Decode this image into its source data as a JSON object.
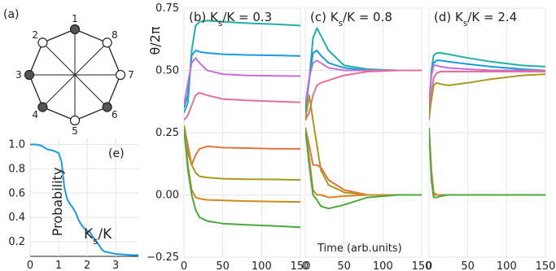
{
  "chart_data": [
    {
      "panel": "a",
      "type": "diagram",
      "label": "(a)",
      "nodes": [
        {
          "id": "1",
          "filled": true
        },
        {
          "id": "8",
          "filled": false
        },
        {
          "id": "7",
          "filled": false
        },
        {
          "id": "6",
          "filled": true
        },
        {
          "id": "5",
          "filled": false
        },
        {
          "id": "4",
          "filled": true
        },
        {
          "id": "3",
          "filled": true
        },
        {
          "id": "2",
          "filled": false
        }
      ]
    },
    {
      "panel": "e",
      "type": "line",
      "label": "(e)",
      "ylabel": "Probability",
      "xlabel": "K_s/K",
      "xlim": [
        0,
        3.8
      ],
      "ylim": [
        0.08,
        1.05
      ],
      "xticks": [
        "0",
        "1",
        "2",
        "3"
      ],
      "yticks": [
        "0.2",
        "0.4",
        "0.6",
        "0.8",
        "1.0"
      ],
      "color": "#1a9be0",
      "x": [
        0,
        0.2,
        0.4,
        0.6,
        0.8,
        1.0,
        1.1,
        1.2,
        1.3,
        1.4,
        1.5,
        1.6,
        1.7,
        1.8,
        1.9,
        2.0,
        2.1,
        2.2,
        2.3,
        2.4,
        2.5,
        2.6,
        2.8,
        3.0,
        3.3,
        3.6,
        3.8
      ],
      "y": [
        1.0,
        1.0,
        0.99,
        0.96,
        0.95,
        0.93,
        0.86,
        0.65,
        0.55,
        0.51,
        0.48,
        0.44,
        0.38,
        0.34,
        0.31,
        0.29,
        0.28,
        0.24,
        0.21,
        0.18,
        0.14,
        0.12,
        0.11,
        0.1,
        0.095,
        0.09,
        0.09
      ]
    },
    {
      "panel": "b",
      "type": "line",
      "title": "(b) K_s/K = 0.3",
      "ylabel": "θ/2π",
      "xlim": [
        0,
        150
      ],
      "ylim": [
        -0.25,
        0.75
      ],
      "xticks": [
        "0",
        "50",
        "100",
        "150"
      ],
      "yticks": [
        "−0.25",
        "0.00",
        "0.25",
        "0.50",
        "0.75"
      ],
      "series": [
        {
          "color": "#1fb0a6",
          "x": [
            0,
            5,
            10,
            15,
            20,
            30,
            50,
            80,
            120,
            150
          ],
          "y": [
            0.33,
            0.37,
            0.58,
            0.68,
            0.695,
            0.7,
            0.695,
            0.69,
            0.685,
            0.68
          ]
        },
        {
          "color": "#1a9be0",
          "x": [
            0,
            5,
            10,
            15,
            20,
            30,
            50,
            80,
            120,
            150
          ],
          "y": [
            0.35,
            0.4,
            0.56,
            0.58,
            0.575,
            0.57,
            0.565,
            0.562,
            0.56,
            0.558
          ]
        },
        {
          "color": "#c86dd6",
          "x": [
            0,
            5,
            10,
            15,
            20,
            30,
            50,
            80,
            120,
            150
          ],
          "y": [
            0.36,
            0.45,
            0.53,
            0.55,
            0.53,
            0.5,
            0.485,
            0.48,
            0.478,
            0.477
          ]
        },
        {
          "color": "#e46f9c",
          "x": [
            0,
            5,
            10,
            15,
            20,
            30,
            50,
            80,
            120,
            150
          ],
          "y": [
            0.3,
            0.32,
            0.36,
            0.4,
            0.41,
            0.4,
            0.385,
            0.38,
            0.375,
            0.372
          ]
        },
        {
          "color": "#e3743a",
          "x": [
            0,
            5,
            10,
            15,
            20,
            30,
            50,
            80,
            120,
            150
          ],
          "y": [
            0.28,
            0.2,
            0.12,
            0.16,
            0.185,
            0.195,
            0.19,
            0.188,
            0.185,
            0.185
          ]
        },
        {
          "color": "#a79a1c",
          "x": [
            0,
            5,
            10,
            15,
            20,
            30,
            50,
            80,
            120,
            150
          ],
          "y": [
            0.27,
            0.17,
            0.12,
            0.09,
            0.075,
            0.07,
            0.065,
            0.063,
            0.062,
            0.06
          ]
        },
        {
          "color": "#cd8b1e",
          "x": [
            0,
            5,
            10,
            15,
            20,
            30,
            50,
            80,
            120,
            150
          ],
          "y": [
            0.28,
            0.12,
            0.02,
            -0.01,
            -0.015,
            -0.02,
            -0.022,
            -0.025,
            -0.027,
            -0.028
          ]
        },
        {
          "color": "#4da83f",
          "x": [
            0,
            5,
            10,
            15,
            20,
            30,
            50,
            80,
            120,
            150
          ],
          "y": [
            0.27,
            0.1,
            0.0,
            -0.06,
            -0.09,
            -0.105,
            -0.115,
            -0.12,
            -0.125,
            -0.13
          ]
        }
      ]
    },
    {
      "panel": "c",
      "type": "line",
      "title": "(c) K_s/K = 0.8",
      "xlabel": "Time (arb.units)",
      "xlim": [
        0,
        150
      ],
      "ylim": [
        -0.25,
        0.75
      ],
      "xticks": [
        "0",
        "50",
        "100",
        "150"
      ],
      "series": [
        {
          "color": "#1fb0a6",
          "x": [
            0,
            5,
            10,
            15,
            20,
            30,
            50,
            80,
            120,
            150
          ],
          "y": [
            0.33,
            0.46,
            0.63,
            0.67,
            0.64,
            0.58,
            0.52,
            0.505,
            0.5,
            0.5
          ]
        },
        {
          "color": "#1a9be0",
          "x": [
            0,
            5,
            10,
            15,
            20,
            30,
            50,
            80,
            120,
            150
          ],
          "y": [
            0.34,
            0.46,
            0.57,
            0.58,
            0.56,
            0.53,
            0.51,
            0.5,
            0.5,
            0.5
          ]
        },
        {
          "color": "#c86dd6",
          "x": [
            0,
            5,
            10,
            15,
            20,
            30,
            50,
            80,
            120,
            150
          ],
          "y": [
            0.36,
            0.47,
            0.53,
            0.54,
            0.53,
            0.51,
            0.5,
            0.5,
            0.5,
            0.5
          ]
        },
        {
          "color": "#e46f9c",
          "x": [
            0,
            5,
            10,
            15,
            20,
            30,
            50,
            80,
            120,
            150
          ],
          "y": [
            0.3,
            0.33,
            0.4,
            0.44,
            0.45,
            0.46,
            0.48,
            0.495,
            0.5,
            0.5
          ]
        },
        {
          "color": "#a79a1c",
          "x": [
            0,
            5,
            10,
            15,
            20,
            30,
            50,
            80,
            120,
            150
          ],
          "y": [
            0.3,
            0.4,
            0.3,
            0.2,
            0.1,
            0.04,
            0.01,
            0.0,
            0.0,
            0.0
          ]
        },
        {
          "color": "#e3743a",
          "x": [
            0,
            5,
            10,
            15,
            20,
            30,
            50,
            80,
            120,
            150
          ],
          "y": [
            0.27,
            0.2,
            0.12,
            0.12,
            0.11,
            0.06,
            0.02,
            0.0,
            0.0,
            0.0
          ]
        },
        {
          "color": "#cd8b1e",
          "x": [
            0,
            5,
            10,
            15,
            20,
            30,
            50,
            80,
            120,
            150
          ],
          "y": [
            0.27,
            0.15,
            0.02,
            0.0,
            0.0,
            -0.01,
            -0.005,
            0.0,
            0.0,
            0.0
          ]
        },
        {
          "color": "#4da83f",
          "x": [
            0,
            5,
            10,
            15,
            20,
            30,
            50,
            80,
            120,
            150
          ],
          "y": [
            0.27,
            0.12,
            0.0,
            -0.02,
            -0.045,
            -0.055,
            -0.04,
            -0.01,
            0.0,
            0.0
          ]
        }
      ]
    },
    {
      "panel": "d",
      "type": "line",
      "title": "(d) K_s/K = 2.4",
      "xlim": [
        0,
        150
      ],
      "ylim": [
        -0.25,
        0.75
      ],
      "xticks": [
        "0",
        "50",
        "100",
        "150"
      ],
      "series": [
        {
          "color": "#1fb0a6",
          "x": [
            0,
            3,
            6,
            10,
            15,
            25,
            50,
            80,
            120,
            150
          ],
          "y": [
            0.33,
            0.5,
            0.56,
            0.57,
            0.57,
            0.565,
            0.55,
            0.535,
            0.52,
            0.515
          ]
        },
        {
          "color": "#1a9be0",
          "x": [
            0,
            3,
            6,
            10,
            15,
            25,
            50,
            80,
            120,
            150
          ],
          "y": [
            0.34,
            0.48,
            0.53,
            0.54,
            0.54,
            0.535,
            0.525,
            0.515,
            0.505,
            0.5
          ]
        },
        {
          "color": "#c86dd6",
          "x": [
            0,
            3,
            6,
            10,
            15,
            25,
            50,
            80,
            120,
            150
          ],
          "y": [
            0.36,
            0.48,
            0.52,
            0.52,
            0.515,
            0.51,
            0.505,
            0.5,
            0.5,
            0.5
          ]
        },
        {
          "color": "#e46f9c",
          "x": [
            0,
            3,
            6,
            10,
            15,
            25,
            50,
            80,
            120,
            150
          ],
          "y": [
            0.3,
            0.4,
            0.47,
            0.49,
            0.495,
            0.495,
            0.495,
            0.495,
            0.495,
            0.495
          ]
        },
        {
          "color": "#a79a1c",
          "x": [
            0,
            3,
            6,
            10,
            15,
            25,
            50,
            80,
            120,
            150
          ],
          "y": [
            0.31,
            0.38,
            0.44,
            0.45,
            0.445,
            0.44,
            0.45,
            0.465,
            0.48,
            0.485
          ]
        },
        {
          "color": "#e3743a",
          "x": [
            0,
            3,
            6,
            10,
            15,
            25,
            50,
            80,
            120,
            150
          ],
          "y": [
            0.27,
            0.1,
            0.01,
            0.0,
            0.0,
            0.0,
            0.0,
            0.0,
            0.0,
            0.0
          ]
        },
        {
          "color": "#cd8b1e",
          "x": [
            0,
            3,
            6,
            10,
            15,
            25,
            50,
            80,
            120,
            150
          ],
          "y": [
            0.27,
            0.08,
            0.0,
            0.0,
            0.0,
            0.0,
            0.0,
            0.0,
            0.0,
            0.0
          ]
        },
        {
          "color": "#4da83f",
          "x": [
            0,
            3,
            6,
            10,
            15,
            25,
            50,
            80,
            120,
            150
          ],
          "y": [
            0.27,
            0.06,
            -0.01,
            -0.01,
            -0.005,
            0.0,
            0.0,
            0.0,
            0.0,
            0.0
          ]
        }
      ]
    }
  ]
}
